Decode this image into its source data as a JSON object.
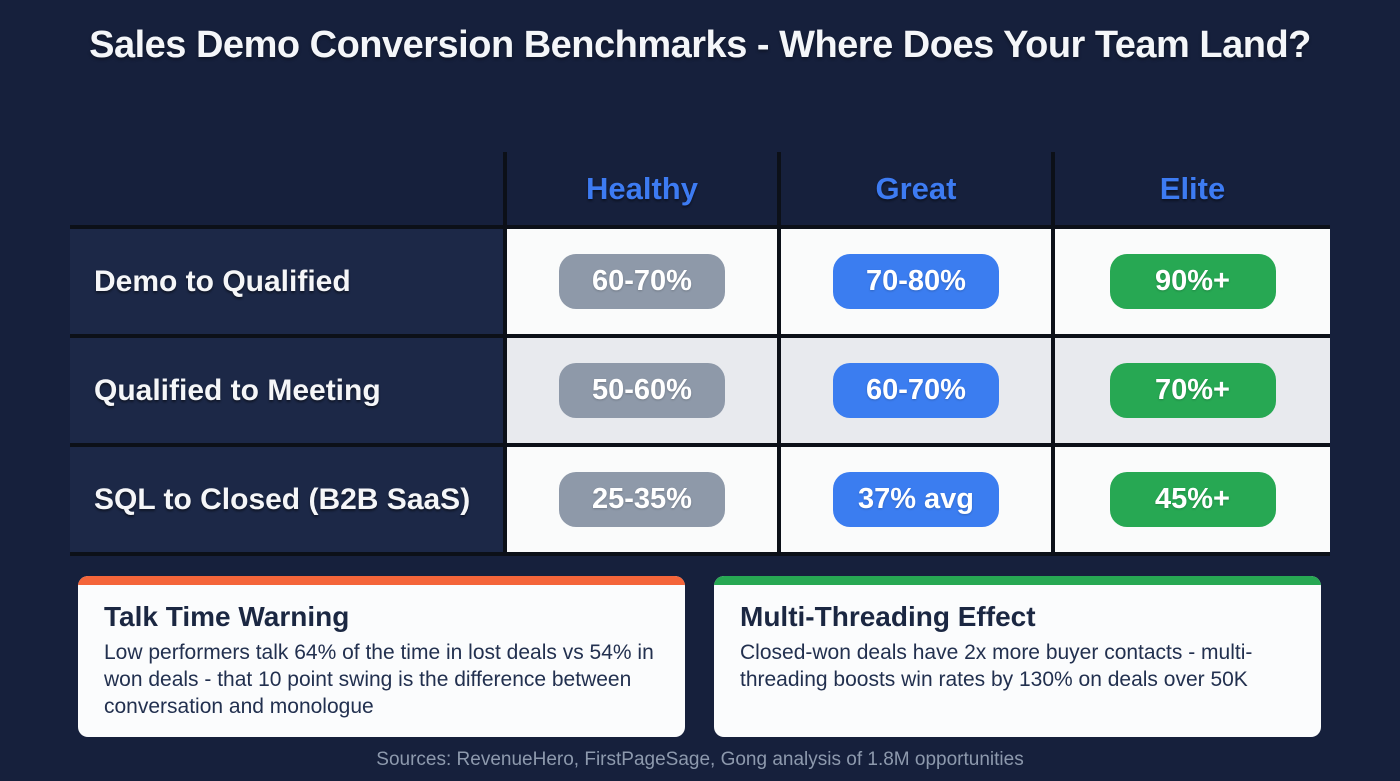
{
  "title": "Sales Demo Conversion Benchmarks - Where Does Your Team Land?",
  "chart_data": {
    "type": "table",
    "title": "Sales Demo Conversion Benchmarks - Where Does Your Team Land?",
    "columns": [
      "Healthy",
      "Great",
      "Elite"
    ],
    "row_labels": [
      "Demo to Qualified",
      "Qualified to Meeting",
      "SQL to Closed (B2B SaaS)"
    ],
    "rows": [
      [
        "60-70%",
        "70-80%",
        "90%+"
      ],
      [
        "50-60%",
        "60-70%",
        "70%+"
      ],
      [
        "25-35%",
        "37% avg",
        "45%+"
      ]
    ],
    "legend_position": "none",
    "grid": "black cell borders, alternating white / light-gray body rows"
  },
  "cards": [
    {
      "title": "Talk Time Warning",
      "body": "Low performers talk 64% of the time in lost deals vs 54% in won deals - that 10 point swing is the difference between conversation and monologue",
      "accent_color": "#f4653a"
    },
    {
      "title": "Multi-Threading Effect",
      "body": "Closed-won deals have 2x more buyer contacts - multi-threading boosts win rates by 130% on deals over 50K",
      "accent_color": "#27a853"
    }
  ],
  "footer": {
    "sources": "Sources: RevenueHero, FirstPageSage, Gong analysis of 1.8M opportunities"
  },
  "colors": {
    "background": "#16203c",
    "row_label_cell": "#1c2847",
    "grid_line": "#0c1018",
    "cell_white": "#fafbfb",
    "cell_alt": "#e8eaee",
    "header_text": "#3d7bf2",
    "pill_healthy": "#8e99a9",
    "pill_great": "#3b7df0",
    "pill_elite": "#27a853",
    "card_background": "#fbfcfd",
    "card_text": "#1b2742",
    "footer_text": "#8d99ad"
  }
}
